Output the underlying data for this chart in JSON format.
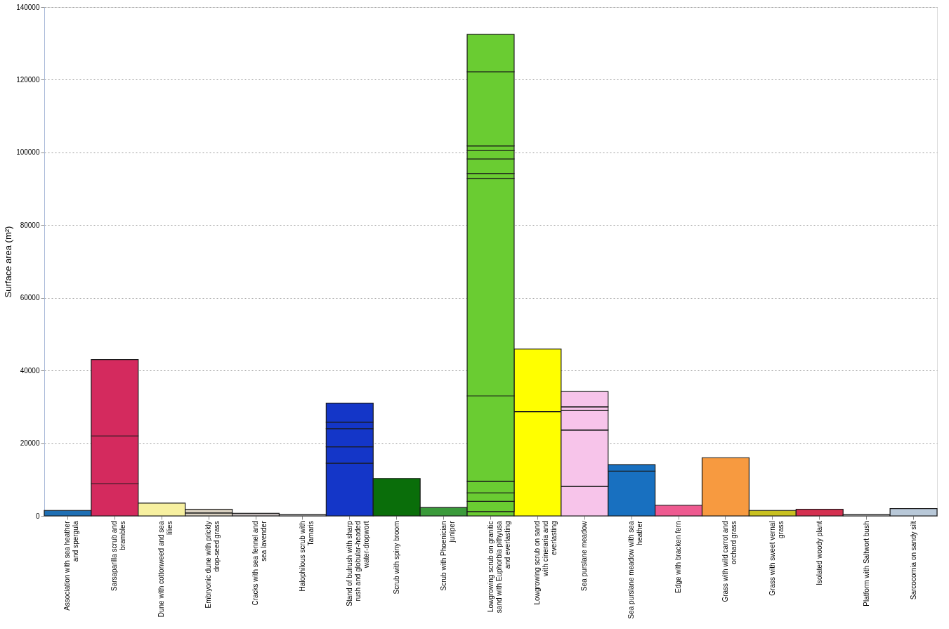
{
  "chart_data": {
    "type": "bar",
    "stacked": true,
    "ylabel": "Surface area (m²)",
    "categories": [
      "Association with sea heather and spergula",
      "Sarsaparilla scrub and brambles",
      "Dune with cottonweed and sea lilies",
      "Embryonic dune with prickly drop-seed grass",
      "Cracks with sea fennel and sea lavender",
      "Halophilous scrub with Tamaris",
      "Stand of bulrush with sharp rush and globular-headed water-dropwort",
      "Scrub with spiny broom",
      "Scrub with Phoenician juniper",
      "Lowgrowing scrub on granitic sand with Euphorbia pithyusa and everlasting",
      "Lowgrowing scrub on sand with cineraria and everlasting",
      "Sea purslane meadow",
      "Sea purslane meadow with sea heather",
      "Edge with bracken fern",
      "Grass with wild carrot and orchard grass",
      "Grass with sweet vernal grass",
      "Isolated woody plant",
      "Platform with Saltwort bush",
      "Sarcocornia on sandy silt"
    ],
    "series": [
      {
        "values": [
          1500,
          8800,
          3500,
          800,
          700,
          300,
          14500,
          10300,
          2300,
          1200,
          28700,
          8100,
          12300,
          2900,
          16000,
          1500,
          1800,
          300,
          2000
        ],
        "colors": [
          "#1f6fb4",
          "#d42a5e",
          "#f7f0a0",
          "#d9d0c0",
          "#c0b8b8",
          "#d0d0d0",
          "#1436c8",
          "#0a6e0a",
          "#3a9a3a",
          "#6acc32",
          "#ffff00",
          "#f7c4ea",
          "#1870c0",
          "#ee5a90",
          "#f79a40",
          "#c8c020",
          "#d43050",
          "#d8d8d8",
          "#b8c8d8"
        ]
      },
      {
        "values": [
          null,
          13200,
          null,
          1000,
          null,
          null,
          4500,
          null,
          null,
          2800,
          17200,
          15500,
          1800,
          null,
          null,
          null,
          null,
          null,
          null
        ],
        "colors": [
          null,
          "#d42a5e",
          null,
          "#d9d0c0",
          null,
          null,
          "#1436c8",
          null,
          null,
          "#6acc32",
          "#ffff00",
          "#f7c4ea",
          "#1870c0",
          null,
          null,
          null,
          null,
          null,
          null
        ]
      },
      {
        "values": [
          null,
          21000,
          null,
          null,
          null,
          null,
          5000,
          null,
          null,
          2300,
          null,
          5400,
          null,
          null,
          null,
          null,
          null,
          null,
          null
        ],
        "colors": [
          null,
          "#d42a5e",
          null,
          null,
          null,
          null,
          "#1436c8",
          null,
          null,
          "#6acc32",
          null,
          "#f7c4ea",
          null,
          null,
          null,
          null,
          null,
          null,
          null
        ]
      },
      {
        "values": [
          null,
          null,
          null,
          null,
          null,
          null,
          1800,
          null,
          null,
          3200,
          null,
          1000,
          null,
          null,
          null,
          null,
          null,
          null,
          null
        ],
        "colors": [
          null,
          null,
          null,
          null,
          null,
          null,
          "#1436c8",
          null,
          null,
          "#6acc32",
          null,
          "#f7c4ea",
          null,
          null,
          null,
          null,
          null,
          null,
          null
        ]
      },
      {
        "values": [
          null,
          null,
          null,
          null,
          null,
          null,
          5200,
          null,
          null,
          23500,
          null,
          4200,
          null,
          null,
          null,
          null,
          null,
          null,
          null
        ],
        "colors": [
          null,
          null,
          null,
          null,
          null,
          null,
          "#1436c8",
          null,
          null,
          "#6acc32",
          null,
          "#f7c4ea",
          null,
          null,
          null,
          null,
          null,
          null,
          null
        ]
      },
      {
        "values": [
          null,
          null,
          null,
          null,
          null,
          null,
          null,
          null,
          null,
          59800,
          null,
          null,
          null,
          null,
          null,
          null,
          null,
          null,
          null
        ],
        "color": "#6acc32"
      },
      {
        "values": [
          null,
          null,
          null,
          null,
          null,
          null,
          null,
          null,
          null,
          1400,
          null,
          null,
          null,
          null,
          null,
          null,
          null,
          null,
          null
        ],
        "color": "#6acc32"
      },
      {
        "values": [
          null,
          null,
          null,
          null,
          null,
          null,
          null,
          null,
          null,
          4000,
          null,
          null,
          null,
          null,
          null,
          null,
          null,
          null,
          null
        ],
        "color": "#6acc32"
      },
      {
        "values": [
          null,
          null,
          null,
          null,
          null,
          null,
          null,
          null,
          null,
          2300,
          null,
          null,
          null,
          null,
          null,
          null,
          null,
          null,
          null
        ],
        "color": "#6acc32"
      },
      {
        "values": [
          null,
          null,
          null,
          null,
          null,
          null,
          null,
          null,
          null,
          1300,
          null,
          null,
          null,
          null,
          null,
          null,
          null,
          null,
          null
        ],
        "color": "#6acc32"
      },
      {
        "values": [
          null,
          null,
          null,
          null,
          null,
          null,
          null,
          null,
          null,
          20400,
          null,
          null,
          null,
          null,
          null,
          null,
          null,
          null,
          null
        ],
        "color": "#6acc32"
      },
      {
        "values": [
          null,
          null,
          null,
          null,
          null,
          null,
          null,
          null,
          null,
          10300,
          null,
          null,
          null,
          null,
          null,
          null,
          null,
          null,
          null
        ],
        "color": "#6acc32"
      }
    ],
    "ylim": [
      0,
      140000
    ],
    "yticks": [
      0,
      20000,
      40000,
      60000,
      80000,
      100000,
      120000,
      140000
    ],
    "grid": "y",
    "legend": false
  }
}
